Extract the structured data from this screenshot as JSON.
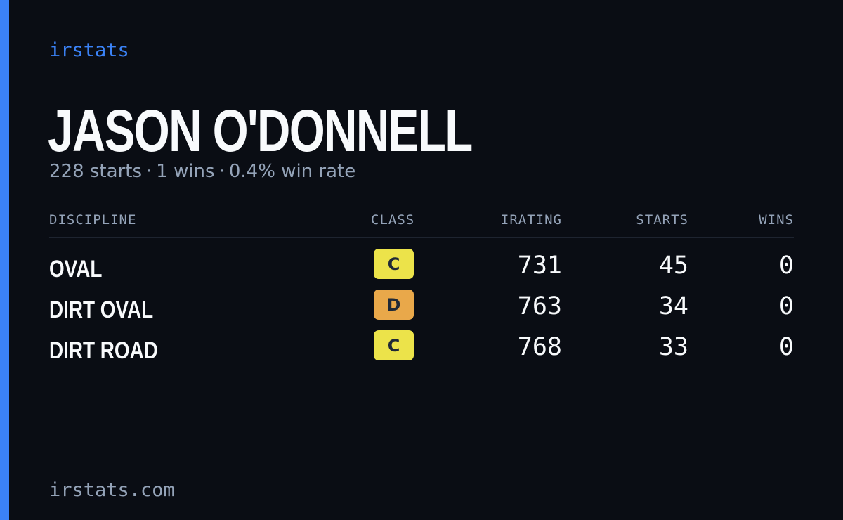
{
  "brand": "irstats",
  "driver": {
    "name": "JASON O'DONNELL",
    "starts_text": "228 starts",
    "wins_text": "1 wins",
    "win_rate_text": "0.4% win rate",
    "separator": "·"
  },
  "table": {
    "headers": {
      "discipline": "DISCIPLINE",
      "class": "CLASS",
      "irating": "IRATING",
      "starts": "STARTS",
      "wins": "WINS"
    },
    "rows": [
      {
        "discipline": "OVAL",
        "class": "C",
        "class_color": "#ece34a",
        "irating": "731",
        "starts": "45",
        "wins": "0"
      },
      {
        "discipline": "DIRT OVAL",
        "class": "D",
        "class_color": "#e9a84a",
        "irating": "763",
        "starts": "34",
        "wins": "0"
      },
      {
        "discipline": "DIRT ROAD",
        "class": "C",
        "class_color": "#ece34a",
        "irating": "768",
        "starts": "33",
        "wins": "0"
      }
    ]
  },
  "footer": "irstats.com",
  "colors": {
    "background": "#0a0d14",
    "accent": "#3b82f6",
    "text_primary": "#f8fafc",
    "text_muted": "#94a3b8"
  }
}
